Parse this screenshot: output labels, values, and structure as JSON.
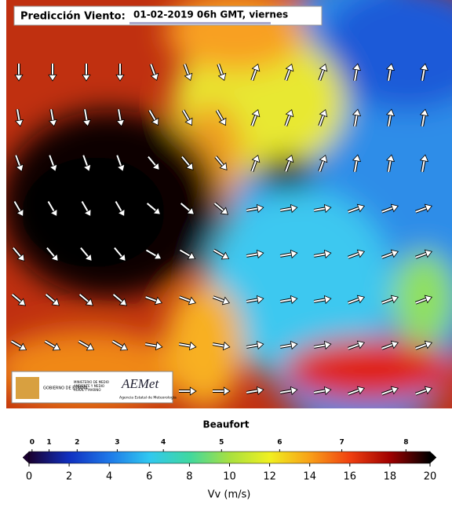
{
  "header": {
    "label": "Predicción Viento:",
    "date": "01-02-2019 06h GMT, viernes"
  },
  "logo": {
    "government": "GOBIERNO DE ESPAÑA",
    "ministry": "MINISTERIO DE MEDIO AMBIENTE Y MEDIO RURAL Y MARINO",
    "agency": "AEMet",
    "agency_full": "Agencia Estatal de Meteorología"
  },
  "colorbar": {
    "title": "Beaufort",
    "label": "Vv (m/s)",
    "lim": [
      0,
      20
    ],
    "ticks": [
      0,
      2,
      4,
      6,
      8,
      10,
      12,
      14,
      16,
      18,
      20
    ],
    "beaufort_ticks": [
      {
        "value": 0.15,
        "label": "0"
      },
      {
        "value": 1.0,
        "label": "1"
      },
      {
        "value": 2.4,
        "label": "2"
      },
      {
        "value": 4.4,
        "label": "3"
      },
      {
        "value": 6.7,
        "label": "4"
      },
      {
        "value": 9.6,
        "label": "5"
      },
      {
        "value": 12.5,
        "label": "6"
      },
      {
        "value": 15.6,
        "label": "7"
      },
      {
        "value": 18.8,
        "label": "8"
      }
    ],
    "colors": [
      "#1a0030",
      "#1030c0",
      "#1e78e8",
      "#30c8f0",
      "#40d8a0",
      "#a8e040",
      "#f0f020",
      "#f8a018",
      "#f04010",
      "#a00000",
      "#000000"
    ]
  }
}
